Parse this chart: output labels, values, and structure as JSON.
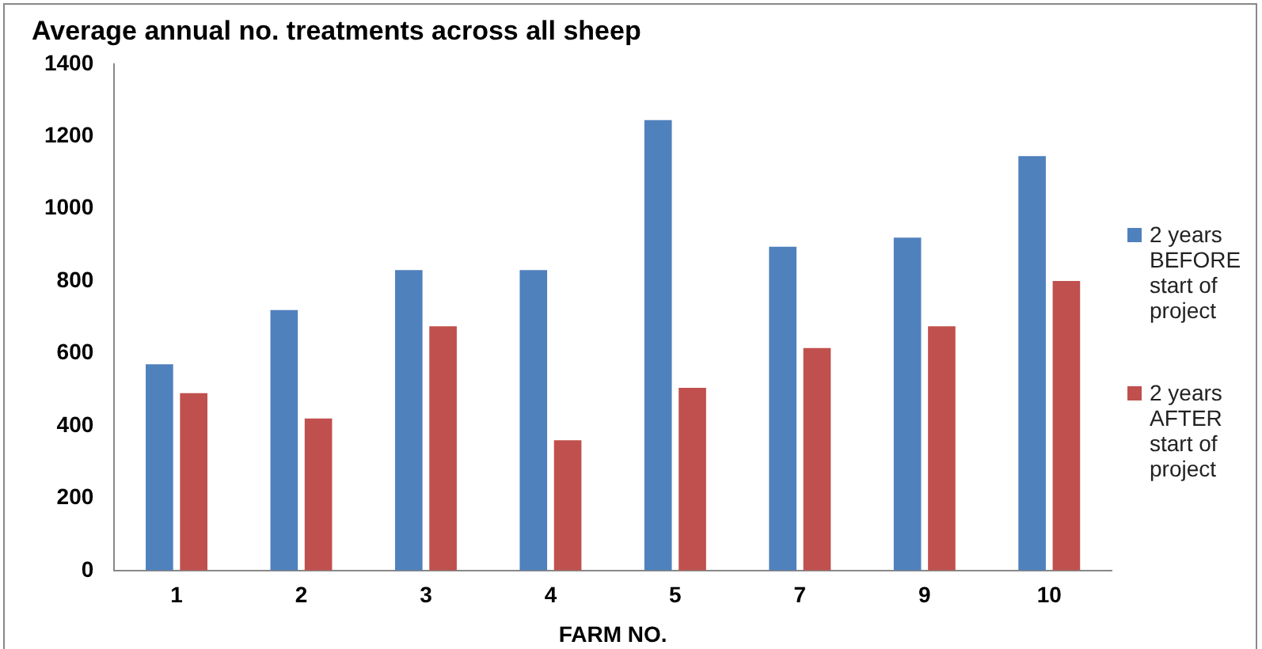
{
  "chart_data": {
    "type": "bar",
    "title": "Average annual no. treatments across all sheep",
    "xlabel": "FARM NO.",
    "categories": [
      "1",
      "2",
      "3",
      "4",
      "5",
      "7",
      "9",
      "10"
    ],
    "series": [
      {
        "name": "2 years BEFORE start of project",
        "color": "#4f81bd",
        "values": [
          570,
          720,
          830,
          830,
          1245,
          895,
          920,
          1145
        ]
      },
      {
        "name": "2 years AFTER start of project",
        "color": "#c0504d",
        "values": [
          490,
          420,
          675,
          360,
          505,
          615,
          675,
          800
        ]
      }
    ],
    "ylim": [
      0,
      1400
    ],
    "yticks": [
      0,
      200,
      400,
      600,
      800,
      1000,
      1200,
      1400
    ],
    "grid": false,
    "legend": "right"
  }
}
